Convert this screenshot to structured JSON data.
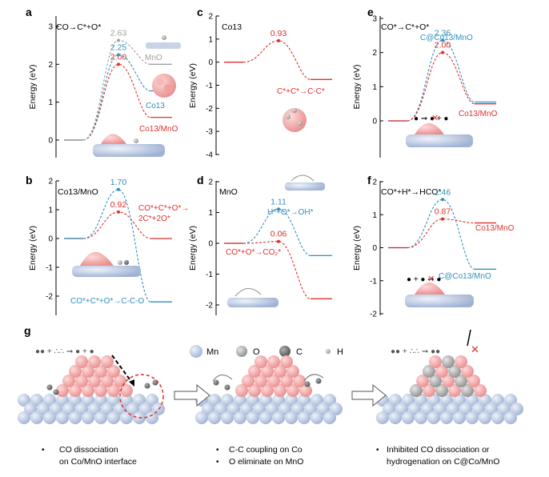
{
  "colors": {
    "red": "#e0302c",
    "blue": "#2f8fbf",
    "grey": "#a0a0a0",
    "pink": "#f3a3a3",
    "mn": "#c2cfe6",
    "o": "#bcbcbc",
    "c": "#7a7a7a"
  },
  "chart_data": [
    {
      "type": "line",
      "panel": "a",
      "title": "CO→C*+O*",
      "ylabel": "Energy (eV)",
      "ylim": [
        -0.5,
        3
      ],
      "yticks": [
        "0",
        "1",
        "2",
        "3"
      ],
      "series": [
        {
          "name": "Co13/MnO",
          "color": "red",
          "start": 0,
          "ts": 2.0,
          "final": 0.6,
          "ts_label": "2.00"
        },
        {
          "name": "Co13",
          "color": "blue",
          "start": 0,
          "ts": 2.25,
          "final": 1.3,
          "ts_label": "2.25"
        },
        {
          "name": "MnO",
          "color": "grey",
          "start": 0,
          "ts": 2.63,
          "final": 2.0,
          "ts_label": "2.63"
        }
      ]
    },
    {
      "type": "line",
      "panel": "b",
      "title": "Co13/MnO",
      "ylabel": "Energy (eV)",
      "ylim": [
        -2.5,
        2
      ],
      "yticks": [
        "-2",
        "-1",
        "0",
        "1",
        "2"
      ],
      "series": [
        {
          "name": "CO*+C*+O*→2C*+2O*",
          "color": "red",
          "start": 0,
          "ts": 0.92,
          "final": 0.0,
          "ts_label": "0.92"
        },
        {
          "name": "CO*+C*+O*→C-C-O",
          "color": "blue",
          "start": 0,
          "ts": 1.7,
          "final": -2.2,
          "ts_label": "1.70"
        }
      ],
      "annotations": [
        "CO*+C*+O*→",
        "2C*+2O*",
        "CO*+C*+O*→C-C-O"
      ]
    },
    {
      "type": "line",
      "panel": "c",
      "title": "Co13",
      "ylabel": "Energy (eV)",
      "ylim": [
        -4,
        2
      ],
      "yticks": [
        "-4",
        "-3",
        "-2",
        "-1",
        "0",
        "1",
        "2"
      ],
      "series": [
        {
          "name": "C*+C*→C-C*",
          "color": "red",
          "start": 0,
          "ts": 0.93,
          "final": -0.75,
          "ts_label": "0.93"
        }
      ],
      "annotations": [
        "C*+C*→C-C*"
      ]
    },
    {
      "type": "line",
      "panel": "d",
      "title": "MnO",
      "ylabel": "Energy (eV)",
      "ylim": [
        -2,
        2
      ],
      "yticks": [
        "-2",
        "-1",
        "0",
        "1",
        "2"
      ],
      "series": [
        {
          "name": "H*+O*→OH*",
          "color": "blue",
          "start": 0,
          "ts": 1.11,
          "final": -0.4,
          "ts_label": "1.11"
        },
        {
          "name": "CO*+O*→CO2*",
          "color": "red",
          "start": 0,
          "ts": 0.06,
          "final": -1.8,
          "ts_label": "0.06"
        }
      ],
      "annotations": [
        "H*+O*→OH*",
        "CO*+O*→CO₂*"
      ]
    },
    {
      "type": "line",
      "panel": "e",
      "title": "CO*→C*+O*",
      "ylabel": "Energy (eV)",
      "ylim": [
        -0.5,
        3
      ],
      "yticks": [
        "0",
        "1",
        "2",
        "3"
      ],
      "series": [
        {
          "name": "C@Co13/MnO",
          "color": "blue",
          "start": 0,
          "ts": 2.36,
          "final": 0.55,
          "ts_label": "2.36"
        },
        {
          "name": "Co13/MnO",
          "color": "red",
          "start": 0,
          "ts": 2.0,
          "final": 0.5,
          "ts_label": "2.00"
        }
      ]
    },
    {
      "type": "line",
      "panel": "f",
      "title": "CO*+H*→HCO*",
      "ylabel": "Energy (eV)",
      "ylim": [
        -2,
        2
      ],
      "yticks": [
        "-2",
        "-1",
        "0",
        "1",
        "2"
      ],
      "series": [
        {
          "name": "C@Co13/MnO",
          "color": "blue",
          "start": 0,
          "ts": 1.46,
          "final": -0.65,
          "ts_label": "1.46"
        },
        {
          "name": "Co13/MnO",
          "color": "red",
          "start": 0,
          "ts": 0.87,
          "final": 0.75,
          "ts_label": "0.87"
        }
      ]
    }
  ],
  "panel_g": {
    "label": "g",
    "legend": [
      "Mn",
      "O",
      "C",
      "H"
    ],
    "captions": [
      [
        "CO dissociation",
        "on Co/MnO interface"
      ],
      [
        "C-C coupling on Co",
        "O eliminate on MnO"
      ],
      [
        "Inhibited CO dissociation or",
        "hydrogenation on C@Co/MnO"
      ]
    ],
    "bullet": "•"
  },
  "labels": {
    "co13": "Co13",
    "mno": "MnO",
    "c_co13_mno": "C@Co13/MnO"
  }
}
